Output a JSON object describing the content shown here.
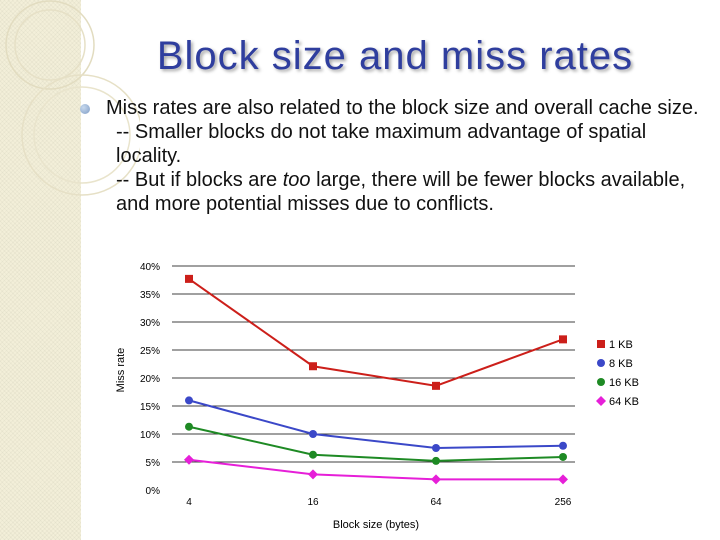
{
  "slide": {
    "title": "Block size and miss rates",
    "bullet_line1": "Miss rates are also related to the block size and overall cache size.",
    "sub1": "-- Smaller blocks do not take maximum advantage of spatial locality.",
    "sub2_pre": "-- But if blocks are ",
    "sub2_em": "too",
    "sub2_post": " large, there will be fewer blocks available, and more potential misses due to conflicts."
  },
  "chart_data": {
    "type": "line",
    "title": "",
    "xlabel": "Block size (bytes)",
    "ylabel": "Miss rate",
    "categories": [
      "4",
      "16",
      "64",
      "256"
    ],
    "ylim": [
      0,
      40
    ],
    "ytick_labels": [
      "0%",
      "5%",
      "10%",
      "15%",
      "20%",
      "25%",
      "30%",
      "35%",
      "40%"
    ],
    "series": [
      {
        "name": "1 KB",
        "values": [
          37.7,
          22.1,
          18.6,
          26.9
        ],
        "color": "#cc1f1a",
        "marker": "square"
      },
      {
        "name": "8 KB",
        "values": [
          16.0,
          10.0,
          7.5,
          7.9
        ],
        "color": "#3b48c8",
        "marker": "circle"
      },
      {
        "name": "16 KB",
        "values": [
          11.3,
          6.3,
          5.2,
          5.9
        ],
        "color": "#1e8a24",
        "marker": "circle"
      },
      {
        "name": "64 KB",
        "values": [
          5.4,
          2.8,
          1.9,
          1.9
        ],
        "color": "#e61fd8",
        "marker": "diamond"
      }
    ]
  }
}
